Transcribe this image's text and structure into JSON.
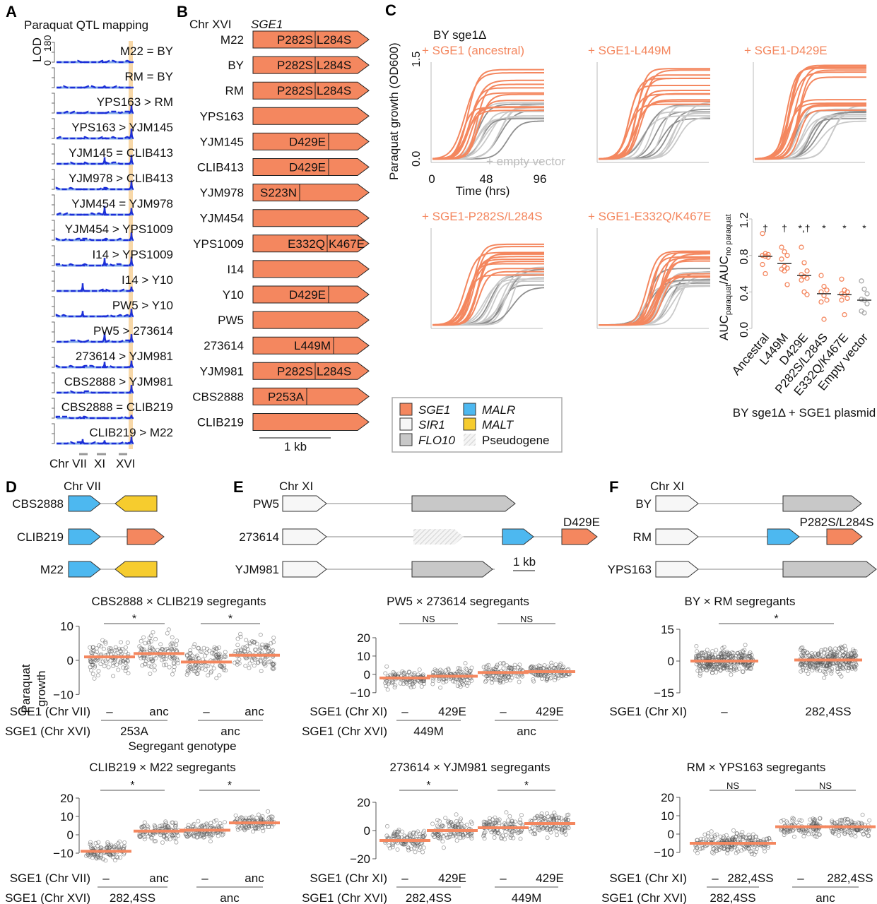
{
  "colors": {
    "sge1": "#f4875f",
    "sir1": "#f7f7f7",
    "flo10": "#c8c8c8",
    "malr": "#4db8f0",
    "malt": "#f6cc2e",
    "qtl_line": "#1c2fd8",
    "qtl_light": "#7fa7e8",
    "qtl_highlight": "#f8d8a8",
    "empty_vector": "#bdbdbd"
  },
  "panel_a": {
    "letter": "A",
    "title": "Paraquat QTL mapping",
    "ylabel": "LOD",
    "yticks": [
      "0",
      "180"
    ],
    "chr_labels": [
      "Chr VII",
      "XI",
      "XVI"
    ],
    "crosses": [
      {
        "label": "M22 = BY",
        "peaks": {
          "VII": 5,
          "XI": 5,
          "XVI": 5
        }
      },
      {
        "label": "RM = BY",
        "peaks": {
          "VII": 5,
          "XI": 20,
          "XVI": 5
        }
      },
      {
        "label": "YPS163 > RM",
        "peaks": {
          "VII": 5,
          "XI": 5,
          "XVI": 70
        }
      },
      {
        "label": "YPS163 > YJM145",
        "peaks": {
          "VII": 5,
          "XI": 5,
          "XVI": 90
        }
      },
      {
        "label": "YJM145 = CLIB413",
        "peaks": {
          "VII": 5,
          "XI": 60,
          "XVI": 80
        }
      },
      {
        "label": "YJM978 > CLIB413",
        "peaks": {
          "VII": 5,
          "XI": 10,
          "XVI": 80
        }
      },
      {
        "label": "YJM454 = YJM978",
        "peaks": {
          "VII": 5,
          "XI": 80,
          "XVI": 60
        }
      },
      {
        "label": "YJM454 > YPS1009",
        "peaks": {
          "VII": 5,
          "XI": 10,
          "XVI": 70
        }
      },
      {
        "label": "I14 > YPS1009",
        "peaks": {
          "VII": 5,
          "XI": 70,
          "XVI": 80
        }
      },
      {
        "label": "I14 > Y10",
        "peaks": {
          "VII": 70,
          "XI": 10,
          "XVI": 40
        }
      },
      {
        "label": "PW5 > Y10",
        "peaks": {
          "VII": 50,
          "XI": 10,
          "XVI": 70
        }
      },
      {
        "label": "PW5 > 273614",
        "peaks": {
          "VII": 5,
          "XI": 90,
          "XVI": 70
        }
      },
      {
        "label": "273614 > YJM981",
        "peaks": {
          "VII": 5,
          "XI": 50,
          "XVI": 60
        }
      },
      {
        "label": "CBS2888 > YJM981",
        "peaks": {
          "VII": 5,
          "XI": 10,
          "XVI": 70
        }
      },
      {
        "label": "CBS2888 = CLIB219",
        "peaks": {
          "VII": 10,
          "XI": 10,
          "XVI": 30
        }
      },
      {
        "label": "CLIB219 > M22",
        "peaks": {
          "VII": 40,
          "XI": 30,
          "XVI": 60
        }
      }
    ]
  },
  "panel_b": {
    "letter": "B",
    "chr": "Chr XVI",
    "gene": "SGE1",
    "scale": "1 kb",
    "strains": [
      {
        "name": "M22",
        "mutations": [
          "P282S",
          "L284S"
        ]
      },
      {
        "name": "BY",
        "mutations": [
          "P282S",
          "L284S"
        ]
      },
      {
        "name": "RM",
        "mutations": [
          "P282S",
          "L284S"
        ]
      },
      {
        "name": "YPS163",
        "mutations": []
      },
      {
        "name": "YJM145",
        "mutations": [
          "D429E"
        ]
      },
      {
        "name": "CLIB413",
        "mutations": [
          "D429E"
        ]
      },
      {
        "name": "YJM978",
        "mutations": [
          "S223N"
        ]
      },
      {
        "name": "YJM454",
        "mutations": []
      },
      {
        "name": "YPS1009",
        "mutations": [
          "E332Q",
          "K467E"
        ]
      },
      {
        "name": "I14",
        "mutations": []
      },
      {
        "name": "Y10",
        "mutations": [
          "D429E"
        ]
      },
      {
        "name": "PW5",
        "mutations": []
      },
      {
        "name": "273614",
        "mutations": [
          "L449M"
        ]
      },
      {
        "name": "YJM981",
        "mutations": [
          "P282S",
          "L284S"
        ]
      },
      {
        "name": "CBS2888",
        "mutations": [
          "P253A"
        ]
      },
      {
        "name": "CLIB219",
        "mutations": []
      }
    ]
  },
  "panel_c": {
    "letter": "C",
    "strain": "BY sge1Δ",
    "ylabel": "Paraquat growth (OD600)",
    "yticks": [
      "0.0",
      "1.5"
    ],
    "xticks": [
      "0",
      "48",
      "96"
    ],
    "xlabel": "Time (hrs)",
    "empty_vector_label": "+ empty vector",
    "growth_panels": [
      "+ SGE1 (ancestral)",
      "+ SGE1-L449M",
      "+ SGE1-D429E",
      "+ SGE1-P282S/L284S",
      "+ SGE1-E332Q/K467E"
    ],
    "legend": [
      {
        "label": "SGE1",
        "color_key": "sge1"
      },
      {
        "label": "MALR",
        "color_key": "malr"
      },
      {
        "label": "SIR1",
        "color_key": "sir1"
      },
      {
        "label": "MALT",
        "color_key": "malt"
      },
      {
        "label": "FLO10",
        "color_key": "flo10"
      },
      {
        "label": "Pseudogene",
        "color_key": "pseudogene"
      }
    ]
  },
  "chart_data": [
    {
      "type": "scatter",
      "ylabel": "AUCparaquat/AUCno paraquat",
      "xlabel": "BY sge1Δ + SGE1 plasmid",
      "ylim": [
        0,
        1.2
      ],
      "yticks": [
        "0.0",
        "0.4",
        "0.8",
        "1.2"
      ],
      "categories": [
        "Ancestral",
        "L449M",
        "D429E",
        "P282S/L284S",
        "E332Q/K467E",
        "Empty vector"
      ],
      "medians": [
        0.79,
        0.71,
        0.58,
        0.38,
        0.37,
        0.31
      ],
      "significance": [
        "†",
        "†",
        "*,†",
        "*",
        "*",
        "*"
      ],
      "points": [
        [
          1.04,
          0.82,
          0.81,
          0.8,
          0.79,
          0.78,
          0.7,
          0.6
        ],
        [
          0.89,
          0.84,
          0.8,
          0.76,
          0.68,
          0.66,
          0.65,
          0.63,
          0.48
        ],
        [
          0.89,
          0.72,
          0.63,
          0.59,
          0.57,
          0.55,
          0.53,
          0.4,
          0.37
        ],
        [
          0.58,
          0.46,
          0.42,
          0.4,
          0.36,
          0.31,
          0.29,
          0.1
        ],
        [
          0.54,
          0.42,
          0.4,
          0.38,
          0.37,
          0.33,
          0.31,
          0.15
        ],
        [
          0.52,
          0.43,
          0.38,
          0.32,
          0.31,
          0.27,
          0.19,
          0.17
        ]
      ]
    }
  ],
  "panel_d": {
    "letter": "D",
    "chr": "Chr VII",
    "strains": [
      "CBS2888",
      "CLIB219",
      "M22"
    ],
    "plots": [
      {
        "title": "CBS2888 × CLIB219 segregants",
        "ylabel": "Paraquat growth",
        "yticks": [
          10,
          0,
          -10
        ],
        "ylim": [
          -12,
          12
        ],
        "sig": [
          "*",
          "*"
        ],
        "medians": [
          1,
          2,
          -0.5,
          1.5
        ],
        "row1_label": "SGE1 (Chr VII)",
        "row1": [
          "–",
          "anc",
          "–",
          "anc"
        ],
        "row2_label": "SGE1 (Chr XVI)",
        "row2": [
          "253A",
          "anc"
        ],
        "xlabel": "Segregant genotype"
      },
      {
        "title": "CLIB219 × M22 segregants",
        "yticks": [
          20,
          10,
          0,
          -10
        ],
        "ylim": [
          -15,
          25
        ],
        "sig": [
          "*",
          "*"
        ],
        "medians": [
          -9,
          2,
          2.5,
          6.5
        ],
        "row1_label": "SGE1 (Chr VII)",
        "row1": [
          "–",
          "anc",
          "–",
          "anc"
        ],
        "row2_label": "SGE1 (Chr XVI)",
        "row2": [
          "282,4SS",
          "anc"
        ]
      }
    ]
  },
  "panel_e": {
    "letter": "E",
    "chr": "Chr XI",
    "strains": [
      "PW5",
      "273614",
      "YJM981"
    ],
    "mutation": "D429E",
    "scale": "1 kb",
    "plots": [
      {
        "title": "PW5 × 273614 segregants",
        "yticks": [
          20,
          10,
          0,
          -10
        ],
        "ylim": [
          -12,
          25
        ],
        "sig": [
          "NS",
          "NS"
        ],
        "medians": [
          -2,
          -1,
          1,
          1.5
        ],
        "row1_label": "SGE1 (Chr XI)",
        "row1": [
          "–",
          "429E",
          "–",
          "429E"
        ],
        "row2_label": "SGE1 (Chr XVI)",
        "row2": [
          "449M",
          "anc"
        ]
      },
      {
        "title": "273614 × YJM981 segregants",
        "yticks": [
          20,
          0,
          -20
        ],
        "ylim": [
          -25,
          25
        ],
        "sig": [
          "*",
          "*"
        ],
        "medians": [
          -7,
          0,
          2,
          5
        ],
        "row1_label": "SGE1 (Chr XI)",
        "row1": [
          "–",
          "429E",
          "–",
          "429E"
        ],
        "row2_label": "SGE1 (Chr XVI)",
        "row2": [
          "282,4SS",
          "449M"
        ]
      }
    ]
  },
  "panel_f": {
    "letter": "F",
    "chr": "Chr XI",
    "strains": [
      "BY",
      "RM",
      "YPS163"
    ],
    "mutation": "P282S/L284S",
    "plots": [
      {
        "title": "BY × RM segregants",
        "yticks": [
          15,
          0,
          -15
        ],
        "ylim": [
          -17,
          17
        ],
        "sig": [
          "*"
        ],
        "medians": [
          0,
          0.5
        ],
        "row1_label": "SGE1 (Chr XI)",
        "row1": [
          "–",
          "282,4SS"
        ]
      },
      {
        "title": "RM × YPS163 segregants",
        "yticks": [
          20,
          10,
          0,
          -10
        ],
        "ylim": [
          -15,
          25
        ],
        "sig": [
          "NS",
          "NS"
        ],
        "medians": [
          -5,
          -5,
          4,
          4
        ],
        "row1_label": "SGE1 (Chr XI)",
        "row1": [
          "–",
          "282,4SS",
          "–",
          "282,4SS"
        ],
        "row2_label": "SGE1 (Chr XVI)",
        "row2": [
          "282,4SS",
          "anc"
        ]
      }
    ]
  }
}
